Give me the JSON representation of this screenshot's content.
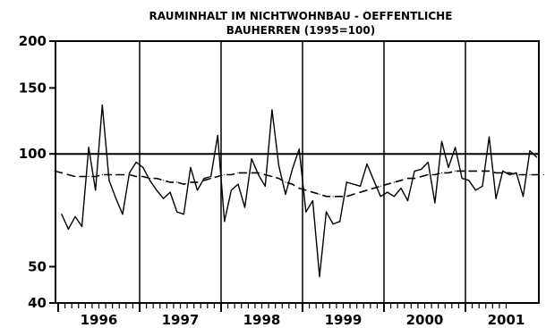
{
  "chart_data": {
    "type": "line",
    "title_line1": "RAUMINHALT IM NICHTWOHNBAU - OEFFENTLICHE",
    "title_line2": "BAUHERREN (1995=100)",
    "xlabel": "",
    "ylabel": "",
    "y_scale": "log",
    "ylim": [
      40,
      200
    ],
    "y_ticks": [
      40,
      50,
      100,
      150,
      200
    ],
    "x_range": [
      "1995-12",
      "2001-06"
    ],
    "year_labels": [
      "1996",
      "1997",
      "1998",
      "1999",
      "2000",
      "2001"
    ],
    "reference_line": 100,
    "grid": "vertical at year boundaries",
    "legend": "none",
    "series": [
      {
        "style": "solid",
        "start": "1996-01",
        "values": [
          69,
          63,
          68,
          64,
          104,
          80,
          135,
          85,
          76,
          69,
          89,
          95,
          92,
          85,
          80,
          76,
          79,
          70,
          69,
          92,
          80,
          86,
          87,
          112,
          66,
          80,
          83,
          72,
          97,
          88,
          82,
          131,
          93,
          78,
          91,
          103,
          70,
          75,
          47,
          70,
          65,
          66,
          84,
          83,
          82,
          94,
          85,
          77,
          79,
          77,
          81,
          75,
          90,
          91,
          95,
          74,
          108,
          92,
          104,
          86,
          85,
          80,
          82,
          111,
          76,
          90,
          88,
          89,
          77,
          102,
          98
        ]
      },
      {
        "style": "dashed",
        "start": "1995-12",
        "values": [
          90,
          89,
          88,
          87,
          87,
          87,
          87,
          88,
          88,
          88,
          88,
          88,
          87,
          87,
          86,
          86,
          85,
          84,
          84,
          83,
          84,
          84,
          85,
          86,
          87,
          88,
          88,
          89,
          89,
          89,
          89,
          88,
          87,
          86,
          84,
          83,
          81,
          80,
          79,
          78,
          77,
          77,
          77,
          77,
          78,
          79,
          80,
          81,
          82,
          83,
          84,
          85,
          86,
          86,
          87,
          88,
          88,
          89,
          89,
          90,
          90,
          90,
          90,
          90,
          90,
          89,
          89,
          89,
          88,
          88,
          88,
          88,
          88
        ]
      }
    ]
  }
}
